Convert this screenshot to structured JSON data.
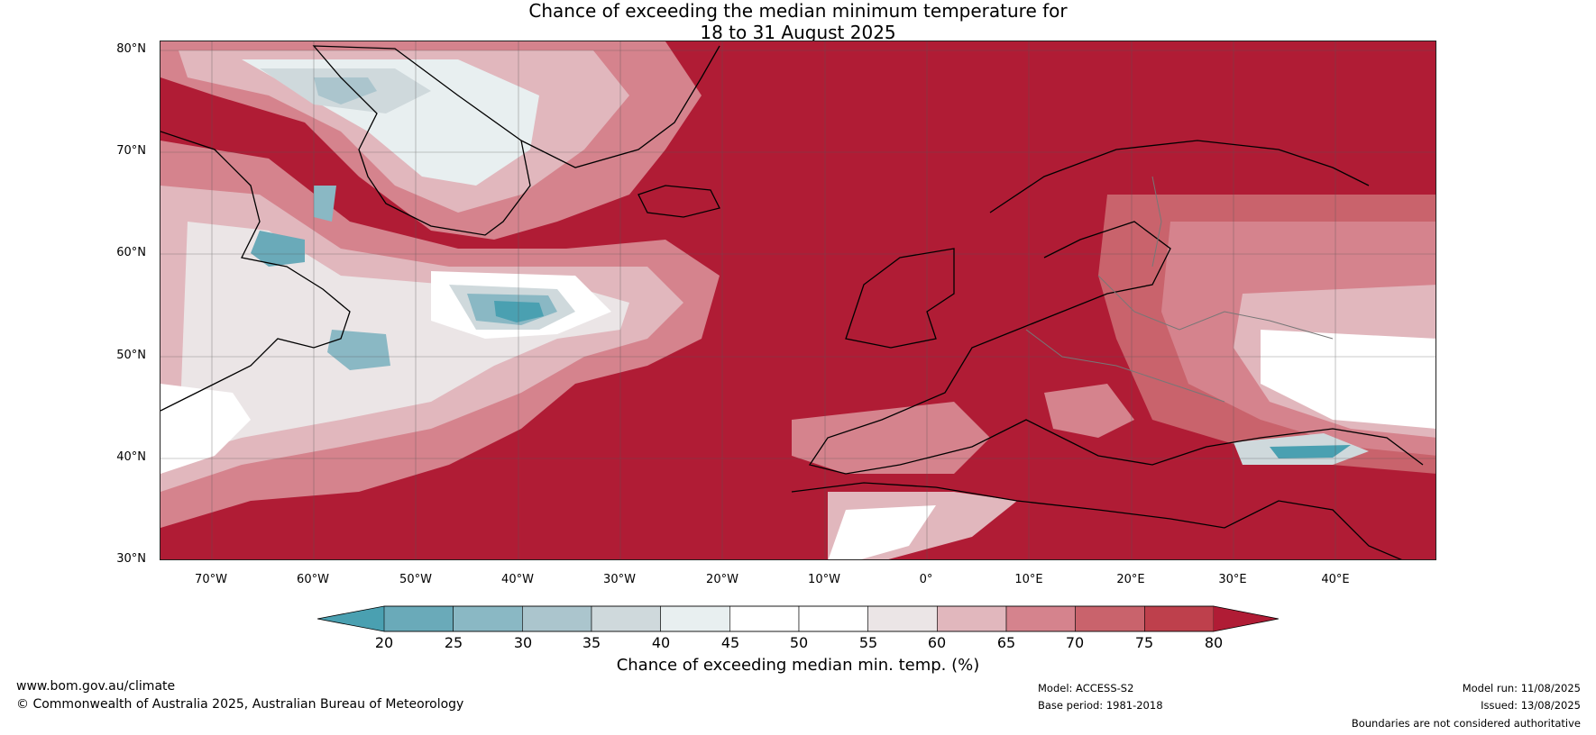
{
  "title": {
    "line1": "Chance of exceeding the median minimum temperature for",
    "line2": "18 to 31 August 2025"
  },
  "map": {
    "background_color": "#b01c35",
    "lat_ticks": [
      "80°N",
      "70°N",
      "60°N",
      "50°N",
      "40°N",
      "30°N"
    ],
    "lon_ticks": [
      "70°W",
      "60°W",
      "50°W",
      "40°W",
      "30°W",
      "20°W",
      "10°W",
      "0°",
      "10°E",
      "20°E",
      "30°E",
      "40°E"
    ]
  },
  "colorbar": {
    "title": "Chance of exceeding median min. temp. (%)",
    "ticks": [
      "20",
      "25",
      "30",
      "35",
      "40",
      "45",
      "50",
      "55",
      "60",
      "65",
      "70",
      "75",
      "80"
    ],
    "colors": [
      "#4aa0b1",
      "#6aaab9",
      "#8ab8c4",
      "#abc5cd",
      "#cfd9dc",
      "#e8eff0",
      "#ffffff",
      "#ffffff",
      "#ebe5e6",
      "#e1b7bd",
      "#d5838d",
      "#c9636c",
      "#be404c",
      "#b01c35"
    ]
  },
  "footer": {
    "url": "www.bom.gov.au/climate",
    "copyright": "© Commonwealth of Australia 2025, Australian Bureau of Meteorology",
    "model": "Model: ACCESS-S2",
    "base_period": "Base period: 1981-2018",
    "model_run": "Model run: 11/08/2025",
    "issued": "Issued: 13/08/2025",
    "disclaimer": "Boundaries are not considered authoritative"
  }
}
